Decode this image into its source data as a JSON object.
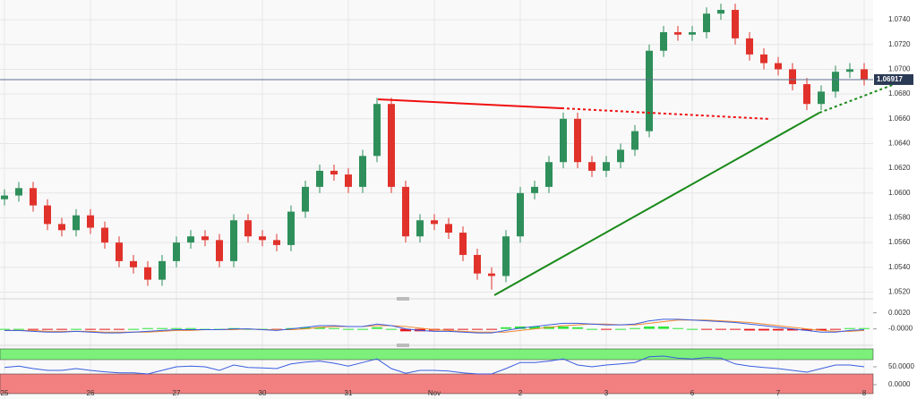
{
  "chart_data": [
    {
      "type": "candlestick",
      "categories": [
        "25",
        null,
        null,
        null,
        null,
        null,
        "26",
        null,
        null,
        null,
        null,
        null,
        "27",
        null,
        null,
        null,
        null,
        null,
        "30",
        null,
        null,
        null,
        null,
        null,
        "31",
        null,
        null,
        null,
        null,
        null,
        "Nov",
        null,
        null,
        null,
        null,
        null,
        "2",
        null,
        null,
        null,
        null,
        null,
        "3",
        null,
        null,
        null,
        null,
        null,
        "6",
        null,
        null,
        null,
        null,
        null,
        "7",
        null,
        null,
        null,
        null,
        null,
        "8"
      ],
      "open": [
        1.0595,
        1.0598,
        1.0604,
        1.059,
        1.0575,
        1.057,
        1.0582,
        1.0572,
        1.056,
        1.0545,
        1.054,
        1.053,
        1.0545,
        1.056,
        1.0565,
        1.0562,
        1.0545,
        1.0578,
        1.0565,
        1.0562,
        1.0558,
        1.0585,
        1.0605,
        1.0618,
        1.0615,
        1.0605,
        1.063,
        1.0672,
        1.0605,
        1.0565,
        1.0578,
        1.0575,
        1.0568,
        1.055,
        1.0535,
        1.0533,
        1.0565,
        1.06,
        1.0605,
        1.0625,
        1.066,
        1.0625,
        1.0618,
        1.0625,
        1.0635,
        1.065,
        1.0715,
        1.073,
        1.0728,
        1.073,
        1.0745,
        1.0748,
        1.0725,
        1.0712,
        1.0705,
        1.07,
        1.0688,
        1.0672,
        1.0682,
        1.0698,
        1.07
      ],
      "high": [
        1.0603,
        1.0609,
        1.0609,
        1.0595,
        1.058,
        1.0587,
        1.0587,
        1.0577,
        1.0565,
        1.055,
        1.0545,
        1.055,
        1.0565,
        1.057,
        1.057,
        1.0567,
        1.0583,
        1.0583,
        1.057,
        1.0567,
        1.059,
        1.061,
        1.0623,
        1.0623,
        1.062,
        1.0635,
        1.0677,
        1.0677,
        1.061,
        1.0583,
        1.0583,
        1.058,
        1.0573,
        1.0555,
        1.054,
        1.057,
        1.0605,
        1.061,
        1.063,
        1.0665,
        1.0665,
        1.063,
        1.063,
        1.064,
        1.0655,
        1.072,
        1.0735,
        1.0735,
        1.0735,
        1.075,
        1.0753,
        1.0753,
        1.073,
        1.0717,
        1.071,
        1.0705,
        1.0693,
        1.0687,
        1.0703,
        1.0705,
        1.0705
      ],
      "low": [
        1.059,
        1.0593,
        1.0585,
        1.057,
        1.0565,
        1.0565,
        1.0567,
        1.0555,
        1.054,
        1.0535,
        1.0525,
        1.0525,
        1.054,
        1.0555,
        1.0557,
        1.054,
        1.054,
        1.056,
        1.0557,
        1.0553,
        1.0553,
        1.058,
        1.06,
        1.061,
        1.06,
        1.06,
        1.0625,
        1.06,
        1.056,
        1.056,
        1.057,
        1.0563,
        1.0545,
        1.053,
        1.0522,
        1.0528,
        1.056,
        1.0595,
        1.06,
        1.062,
        1.062,
        1.0613,
        1.0613,
        1.062,
        1.063,
        1.0645,
        1.071,
        1.0723,
        1.0723,
        1.0725,
        1.074,
        1.072,
        1.0707,
        1.07,
        1.0695,
        1.0683,
        1.0667,
        1.0667,
        1.0677,
        1.0693,
        1.0687
      ],
      "close": [
        1.0598,
        1.0604,
        1.059,
        1.0575,
        1.057,
        1.0582,
        1.0572,
        1.056,
        1.0545,
        1.054,
        1.053,
        1.0545,
        1.056,
        1.0565,
        1.0562,
        1.0545,
        1.0578,
        1.0565,
        1.0562,
        1.0558,
        1.0585,
        1.0605,
        1.0618,
        1.0615,
        1.0605,
        1.063,
        1.0672,
        1.0605,
        1.0565,
        1.0578,
        1.0575,
        1.0568,
        1.055,
        1.0535,
        1.0533,
        1.0565,
        1.06,
        1.0605,
        1.0625,
        1.066,
        1.0625,
        1.0618,
        1.0625,
        1.0635,
        1.065,
        1.0715,
        1.073,
        1.0728,
        1.073,
        1.0745,
        1.0748,
        1.0725,
        1.0712,
        1.0705,
        1.07,
        1.0688,
        1.0672,
        1.0682,
        1.0698,
        1.07,
        1.0692
      ],
      "up_color": "#2f8f5b",
      "down_color": "#e0322b",
      "last_price": 1.06917,
      "ylim": [
        1.0516,
        1.0756
      ],
      "yticks": [
        {
          "value": 1.052,
          "label": "1.0520"
        },
        {
          "value": 1.054,
          "label": "1.0540"
        },
        {
          "value": 1.056,
          "label": "1.0560"
        },
        {
          "value": 1.058,
          "label": "1.0580"
        },
        {
          "value": 1.06,
          "label": "1.0600"
        },
        {
          "value": 1.062,
          "label": "1.0620"
        },
        {
          "value": 1.064,
          "label": "1.0640"
        },
        {
          "value": 1.066,
          "label": "1.0660"
        },
        {
          "value": 1.068,
          "label": "1.0680"
        },
        {
          "value": 1.07,
          "label": "1.0700"
        },
        {
          "value": 1.072,
          "label": "1.0720"
        },
        {
          "value": 1.074,
          "label": "1.0740"
        }
      ],
      "grid": true
    },
    {
      "type": "macd",
      "macd": [
        -0.0002,
        -0.0002,
        -0.0003,
        -0.0004,
        -0.0004,
        -0.0003,
        -0.0004,
        -0.0005,
        -0.0005,
        -0.0004,
        -0.0003,
        -0.0002,
        -0.0001,
        -0.0001,
        -0.0001,
        -0.0001,
        0,
        0,
        -0.0001,
        -0.0002,
        0,
        0.0002,
        0.0004,
        0.0004,
        0.0003,
        0.0003,
        0.0006,
        0.0004,
        0,
        -0.0002,
        -0.0003,
        -0.0003,
        -0.0004,
        -0.0005,
        -0.0005,
        -0.0002,
        0.0001,
        0.0003,
        0.0005,
        0.0007,
        0.0007,
        0.0006,
        0.0005,
        0.0005,
        0.0006,
        0.001,
        0.0012,
        0.0012,
        0.0011,
        0.001,
        0.0009,
        0.0008,
        0.0006,
        0.0004,
        0.0002,
        0,
        -0.0002,
        -0.0004,
        -0.0004,
        -0.0002,
        -0.0001
      ],
      "signal": [
        -0.0002,
        -0.0002,
        -0.0002,
        -0.0003,
        -0.0003,
        -0.0003,
        -0.0003,
        -0.0004,
        -0.0004,
        -0.0004,
        -0.0004,
        -0.0003,
        -0.0002,
        -0.0002,
        -0.0001,
        -0.0001,
        -0.0001,
        0,
        -0.0001,
        -0.0001,
        -0.0001,
        0,
        0.0002,
        0.0003,
        0.0003,
        0.0003,
        0.0004,
        0.0004,
        0.0003,
        0.0001,
        -0.0001,
        -0.0002,
        -0.0003,
        -0.0004,
        -0.0004,
        -0.0004,
        -0.0002,
        0,
        0.0002,
        0.0004,
        0.0005,
        0.0006,
        0.0006,
        0.0005,
        0.0005,
        0.0007,
        0.0009,
        0.0011,
        0.0011,
        0.0011,
        0.001,
        0.0009,
        0.0008,
        0.0006,
        0.0004,
        0.0002,
        0,
        -0.0002,
        -0.0003,
        -0.0003,
        -0.0002
      ],
      "histogram": [
        0,
        0,
        -0.0001,
        -0.0001,
        -0.0001,
        0,
        -0.0001,
        -0.0001,
        -0.0001,
        0,
        0.0001,
        0.0001,
        0.0001,
        0.0001,
        0,
        0,
        0.0001,
        0,
        0,
        -0.0001,
        0.0001,
        0.0002,
        0.0002,
        0.0001,
        0,
        0,
        0.0002,
        0,
        -0.0003,
        -0.0003,
        -0.0002,
        -0.0001,
        -0.0001,
        -0.0001,
        -0.0001,
        0.0002,
        0.0003,
        0.0003,
        0.0003,
        0.0003,
        0.0002,
        0,
        -0.0001,
        0,
        0.0001,
        0.0003,
        0.0003,
        0.0001,
        0,
        -0.0001,
        -0.0001,
        -0.0001,
        -0.0002,
        -0.0002,
        -0.0002,
        -0.0002,
        -0.0002,
        -0.0002,
        -0.0001,
        0.0001,
        0.0001
      ],
      "macd_color": "#3a5ce0",
      "signal_color": "#f08a2c",
      "pos_color": "#2ee63a",
      "neg_color": "#e8161a",
      "ylim": [
        -0.0016,
        0.0033
      ],
      "yticks": [
        {
          "value": 0.002,
          "label": "0.0020"
        },
        {
          "value": 0,
          "label": "-0.0000"
        }
      ]
    },
    {
      "type": "rsi",
      "values": [
        48,
        52,
        45,
        40,
        40,
        45,
        40,
        36,
        33,
        33,
        30,
        40,
        50,
        52,
        50,
        40,
        55,
        48,
        47,
        45,
        58,
        63,
        66,
        60,
        52,
        62,
        72,
        45,
        32,
        40,
        40,
        38,
        33,
        30,
        30,
        45,
        62,
        62,
        66,
        72,
        55,
        50,
        55,
        58,
        62,
        78,
        80,
        74,
        72,
        76,
        74,
        58,
        52,
        48,
        45,
        40,
        35,
        45,
        55,
        55,
        50
      ],
      "color": "#3a5ce0",
      "overbought": 70,
      "oversold": 30,
      "over_color": "#7cf07a",
      "under_color": "#f28080",
      "ylim": [
        -25,
        100
      ],
      "yticks": [
        {
          "value": 50,
          "label": "50.0000"
        },
        {
          "value": 0,
          "label": "0.0000"
        }
      ]
    }
  ]
}
